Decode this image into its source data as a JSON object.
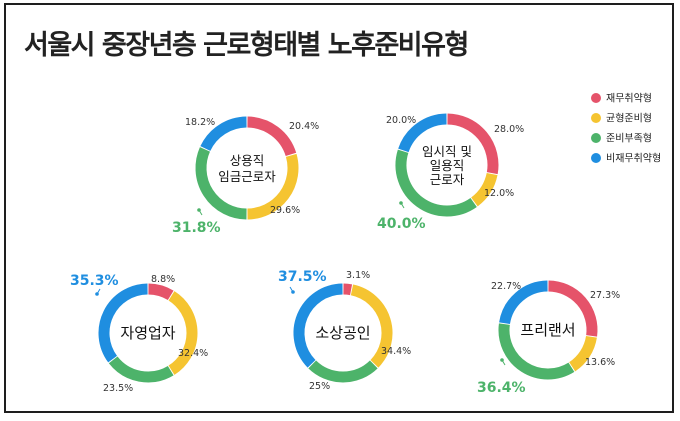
{
  "title": "서울시 중장년층 근로형태별 노후준비유형",
  "chart_data": [
    {
      "type": "pie",
      "name": "상용직 임금근로자",
      "categories": [
        "재무취약형",
        "균형준비형",
        "준비부족형",
        "비재무취약형"
      ],
      "values": [
        20.4,
        29.6,
        31.8,
        18.2
      ],
      "labels": [
        "20.4%",
        "29.6%",
        "31.8%",
        "18.2%"
      ]
    },
    {
      "type": "pie",
      "name": "임시직 및 일용직 근로자",
      "categories": [
        "재무취약형",
        "균형준비형",
        "준비부족형",
        "비재무취약형"
      ],
      "values": [
        28.0,
        12.0,
        40.0,
        20.0
      ],
      "labels": [
        "28.0%",
        "12.0%",
        "40.0%",
        "20.0%"
      ]
    },
    {
      "type": "pie",
      "name": "자영업자",
      "categories": [
        "재무취약형",
        "균형준비형",
        "준비부족형",
        "비재무취약형"
      ],
      "values": [
        8.8,
        32.4,
        23.5,
        35.3
      ],
      "labels": [
        "8.8%",
        "32.4%",
        "23.5%",
        "35.3%"
      ]
    },
    {
      "type": "pie",
      "name": "소상공인",
      "categories": [
        "재무취약형",
        "균형준비형",
        "준비부족형",
        "비재무취약형"
      ],
      "values": [
        3.1,
        34.4,
        25,
        37.5
      ],
      "labels": [
        "3.1%",
        "34.4%",
        "25%",
        "37.5%"
      ]
    },
    {
      "type": "pie",
      "name": "프리랜서",
      "categories": [
        "재무취약형",
        "균형준비형",
        "준비부족형",
        "비재무취약형"
      ],
      "values": [
        27.3,
        13.6,
        36.4,
        22.7
      ],
      "labels": [
        "27.3%",
        "13.6%",
        "36.4%",
        "22.7%"
      ]
    }
  ],
  "legend": {
    "position": "right",
    "items": [
      {
        "label": "재무취약형",
        "color": "#e5536a"
      },
      {
        "label": "균형준비형",
        "color": "#f5c431"
      },
      {
        "label": "준비부족형",
        "color": "#4db36a"
      },
      {
        "label": "비재무취약형",
        "color": "#1f8ee0"
      }
    ]
  },
  "donut_labels": [
    [
      "상용직",
      "임금근로자"
    ],
    [
      "임시직 및",
      "일용직",
      "근로자"
    ],
    [
      "자영업자"
    ],
    [
      "소상공인"
    ],
    [
      "프리랜서"
    ]
  ]
}
